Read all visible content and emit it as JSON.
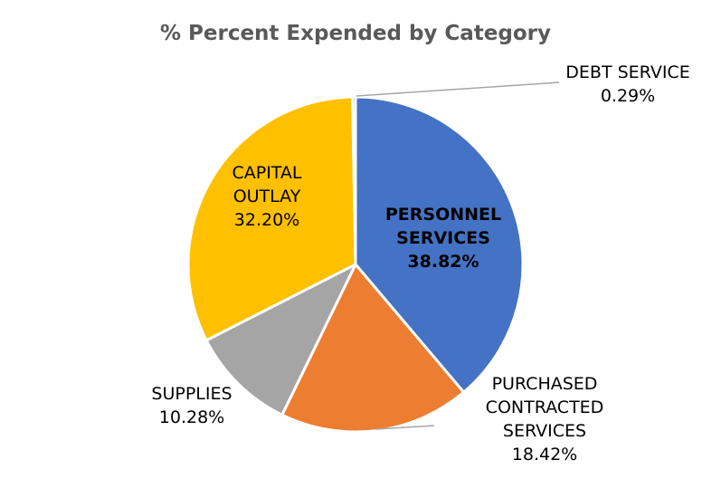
{
  "chart_data": {
    "type": "pie",
    "title": "% Percent Expended by Category",
    "slices": [
      {
        "name": "PERSONNEL SERVICES",
        "label_lines": [
          "PERSONNEL",
          "SERVICES"
        ],
        "percent_label": "38.82%",
        "value": 38.82,
        "color": "#4472C4"
      },
      {
        "name": "PURCHASED CONTRACTED SERVICES",
        "label_lines": [
          "PURCHASED",
          "CONTRACTED",
          "SERVICES"
        ],
        "percent_label": "18.42%",
        "value": 18.42,
        "color": "#ED7D31"
      },
      {
        "name": "SUPPLIES",
        "label_lines": [
          "SUPPLIES"
        ],
        "percent_label": "10.28%",
        "value": 10.28,
        "color": "#A5A5A5"
      },
      {
        "name": "CAPITAL OUTLAY",
        "label_lines": [
          "CAPITAL",
          "OUTLAY"
        ],
        "percent_label": "32.20%",
        "value": 32.2,
        "color": "#FFC000"
      },
      {
        "name": "DEBT SERVICE",
        "label_lines": [
          "DEBT SERVICE"
        ],
        "percent_label": "0.29%",
        "value": 0.29,
        "color": "#5B9BD5"
      }
    ]
  }
}
